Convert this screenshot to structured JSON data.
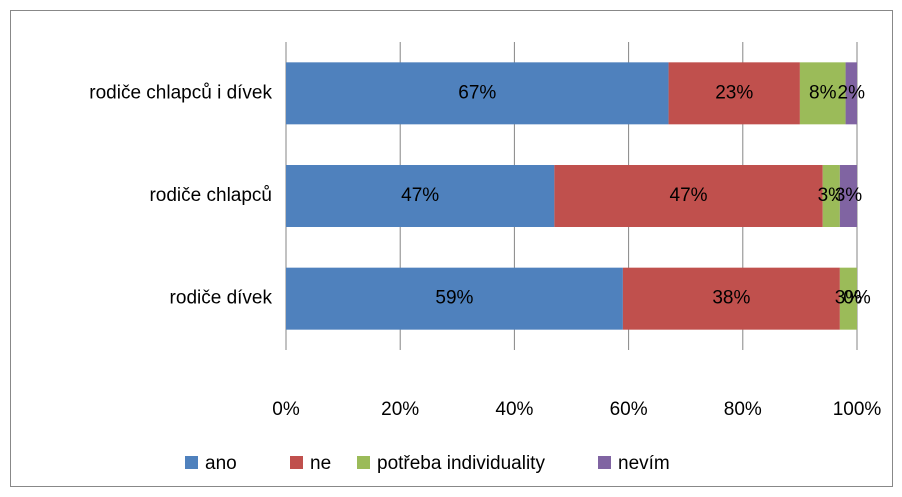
{
  "chart_data": {
    "type": "stacked-bar-horizontal",
    "categories": [
      "rodiče chlapců i dívek",
      "rodiče chlapců",
      "rodiče dívek"
    ],
    "series": [
      {
        "name": "ano",
        "color": "#4f81bd",
        "values": [
          67,
          47,
          59
        ],
        "value_labels": [
          "67%",
          "47%",
          "59%"
        ]
      },
      {
        "name": "ne",
        "color": "#c0504d",
        "values": [
          23,
          47,
          38
        ],
        "value_labels": [
          "23%",
          "47%",
          "38%"
        ]
      },
      {
        "name": "potřeba individuality",
        "color": "#9bbb59",
        "values": [
          8,
          3,
          3
        ],
        "value_labels": [
          "8%",
          "3%",
          "3%"
        ]
      },
      {
        "name": "nevím",
        "color": "#8064a2",
        "values": [
          2,
          3,
          0
        ],
        "value_labels": [
          "2%",
          "3%",
          "0%"
        ]
      }
    ],
    "xlim": [
      0,
      100
    ],
    "xticks": [
      {
        "value": 0,
        "label": "0%"
      },
      {
        "value": 20,
        "label": "20%"
      },
      {
        "value": 40,
        "label": "40%"
      },
      {
        "value": 60,
        "label": "60%"
      },
      {
        "value": 80,
        "label": "80%"
      },
      {
        "value": 100,
        "label": "100%"
      }
    ],
    "grid": true,
    "legend": "bottom"
  }
}
